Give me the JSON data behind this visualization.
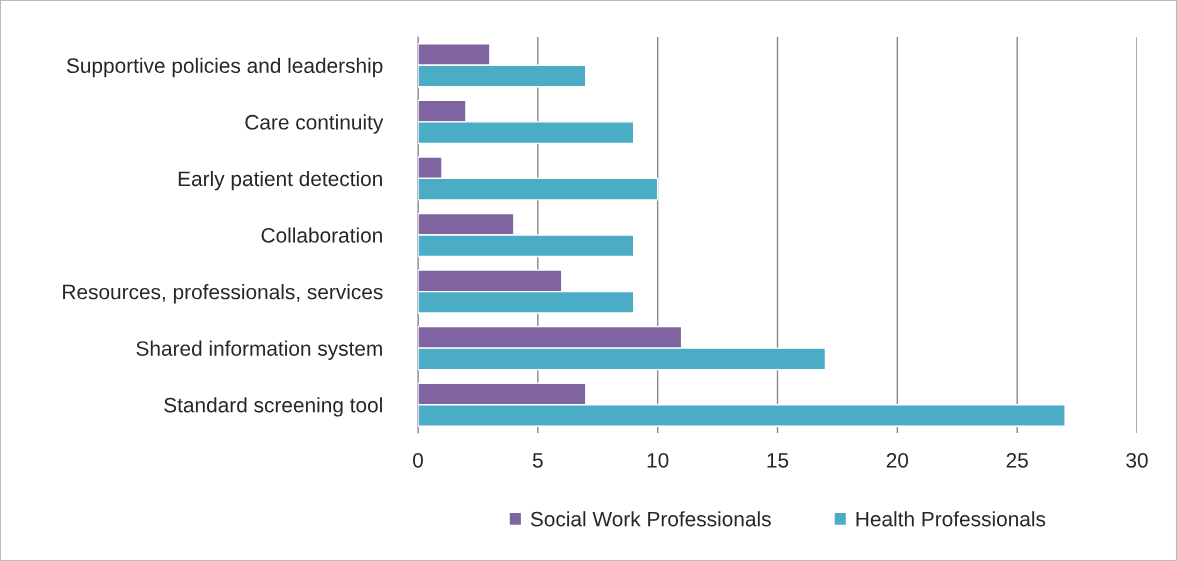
{
  "chart_data": {
    "type": "bar",
    "orientation": "horizontal",
    "categories": [
      "Supportive policies and leadership",
      "Care continuity",
      "Early patient detection",
      "Collaboration",
      "Resources, professionals, services",
      "Shared information system",
      "Standard screening tool"
    ],
    "series": [
      {
        "name": "Social Work Professionals",
        "color": "#8064a2",
        "values": [
          3,
          2,
          1,
          4,
          6,
          11,
          7
        ]
      },
      {
        "name": "Health Professionals",
        "color": "#4bacc6",
        "values": [
          7,
          9,
          10,
          9,
          9,
          17,
          27
        ]
      }
    ],
    "xlim": [
      0,
      30
    ],
    "xticks": [
      0,
      5,
      10,
      15,
      20,
      25,
      30
    ],
    "grid": "x",
    "legend": "bottom"
  }
}
